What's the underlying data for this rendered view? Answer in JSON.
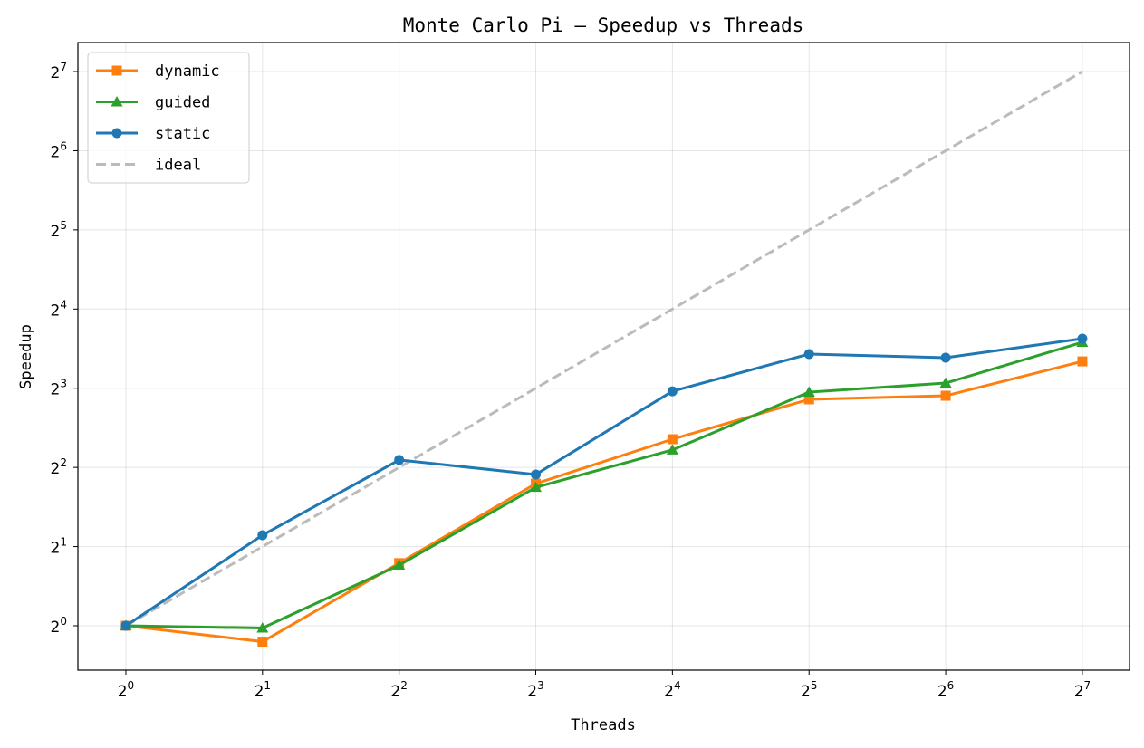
{
  "chart_data": {
    "type": "line",
    "title": "Monte Carlo Pi — Speedup vs Threads",
    "xlabel": "Threads",
    "ylabel": "Speedup",
    "xscale": "log2",
    "yscale": "log2",
    "xlim": [
      0.784,
      162.6
    ],
    "ylim": [
      0.678,
      165.0
    ],
    "grid": true,
    "legend_position": "top-left",
    "x": [
      1,
      2,
      4,
      8,
      16,
      32,
      64,
      128
    ],
    "xticks": [
      {
        "base": "2",
        "exp": "0"
      },
      {
        "base": "2",
        "exp": "1"
      },
      {
        "base": "2",
        "exp": "2"
      },
      {
        "base": "2",
        "exp": "3"
      },
      {
        "base": "2",
        "exp": "4"
      },
      {
        "base": "2",
        "exp": "5"
      },
      {
        "base": "2",
        "exp": "6"
      },
      {
        "base": "2",
        "exp": "7"
      }
    ],
    "yticks": [
      {
        "base": "2",
        "exp": "0"
      },
      {
        "base": "2",
        "exp": "1"
      },
      {
        "base": "2",
        "exp": "2"
      },
      {
        "base": "2",
        "exp": "3"
      },
      {
        "base": "2",
        "exp": "4"
      },
      {
        "base": "2",
        "exp": "5"
      },
      {
        "base": "2",
        "exp": "6"
      },
      {
        "base": "2",
        "exp": "7"
      }
    ],
    "series": [
      {
        "name": "dynamic",
        "color": "#ff7f0e",
        "marker": "square",
        "values": [
          1.0,
          0.87,
          1.73,
          3.47,
          5.12,
          7.26,
          7.49,
          10.12
        ]
      },
      {
        "name": "guided",
        "color": "#2ca02c",
        "marker": "triangle",
        "values": [
          1.0,
          0.98,
          1.7,
          3.36,
          4.66,
          7.73,
          8.37,
          11.96
        ]
      },
      {
        "name": "static",
        "color": "#1f77b4",
        "marker": "circle",
        "values": [
          1.0,
          2.21,
          4.27,
          3.76,
          7.79,
          10.79,
          10.45,
          12.35
        ]
      },
      {
        "name": "ideal",
        "color": "#bbbbbb",
        "marker": "none",
        "dashed": true,
        "values": [
          1,
          2,
          4,
          8,
          16,
          32,
          64,
          128
        ]
      }
    ]
  }
}
